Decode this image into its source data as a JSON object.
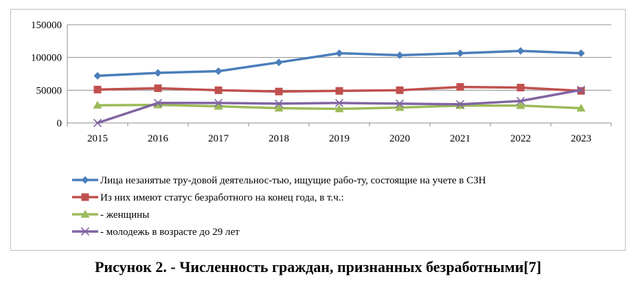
{
  "chart_data": {
    "type": "line",
    "categories": [
      "2015",
      "2016",
      "2017",
      "2018",
      "2019",
      "2020",
      "2021",
      "2022",
      "2023"
    ],
    "ylim": [
      0,
      150000
    ],
    "yticks": [
      0,
      50000,
      100000,
      150000
    ],
    "ytick_labels": [
      "0",
      "50000",
      "100000",
      "150000"
    ],
    "grid": "horizontal",
    "legend_position": "bottom",
    "series": [
      {
        "name": "Лица незанятые тру-довой деятельнос-тью, ищущие рабо-ту, состоящие на учете в СЗН",
        "color": "#4a7ebb",
        "marker": "diamond",
        "values": [
          72000,
          76500,
          79000,
          92500,
          106500,
          103500,
          106500,
          110000,
          106500
        ]
      },
      {
        "name": "Из них имеют статус безработного на конец года, в т.ч.:",
        "color": "#c0504d",
        "marker": "square",
        "values": [
          51000,
          53000,
          50000,
          48000,
          49000,
          50000,
          55000,
          54000,
          49000
        ]
      },
      {
        "name": " - женщины",
        "color": "#9bbb59",
        "marker": "triangle",
        "values": [
          27000,
          27500,
          25500,
          22500,
          21500,
          23500,
          26500,
          26500,
          22500
        ]
      },
      {
        "name": "- молодежь в возрасте до  29 лет",
        "color": "#8064a2",
        "marker": "x",
        "values": [
          0,
          30500,
          30500,
          29500,
          30500,
          29500,
          28500,
          33500,
          50500
        ]
      }
    ]
  },
  "caption": "Рисунок 2. - Численность граждан, признанных безработными[7]"
}
